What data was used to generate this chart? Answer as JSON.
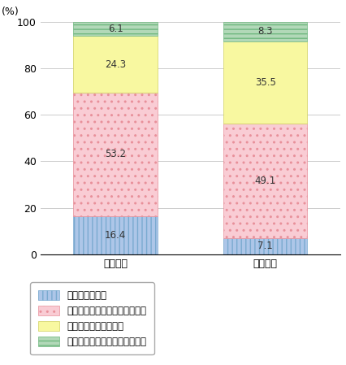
{
  "categories": [
    "公共目的",
    "商用目的"
  ],
  "series": [
    {
      "label": "提供してもよい",
      "values": [
        16.4,
        7.1
      ],
      "facecolor": "#adc6e8",
      "edgecolor": "#7aaad0",
      "hatch": "|||"
    },
    {
      "label": "条件によっては提供してもよい",
      "values": [
        53.2,
        49.1
      ],
      "facecolor": "#f9ccd4",
      "edgecolor": "#e8909a",
      "hatch": ".."
    },
    {
      "label": "あまり提供したくない",
      "values": [
        24.3,
        35.5
      ],
      "facecolor": "#f8f8a0",
      "edgecolor": "#d0d060",
      "hatch": ""
    },
    {
      "label": "どんな場合でも提供したくない",
      "values": [
        6.1,
        8.3
      ],
      "facecolor": "#b2d8b8",
      "edgecolor": "#70b880",
      "hatch": "---"
    }
  ],
  "ylabel": "(%)",
  "ylim": [
    0,
    100
  ],
  "yticks": [
    0,
    20,
    40,
    60,
    80,
    100
  ],
  "bar_width": 0.28,
  "bar_positions": [
    0.25,
    0.75
  ],
  "xlim": [
    0.0,
    1.0
  ],
  "background_color": "#ffffff",
  "text_color": "#333333",
  "value_fontsize": 8.5,
  "tick_fontsize": 9,
  "ylabel_fontsize": 9,
  "legend_fontsize": 8.5
}
